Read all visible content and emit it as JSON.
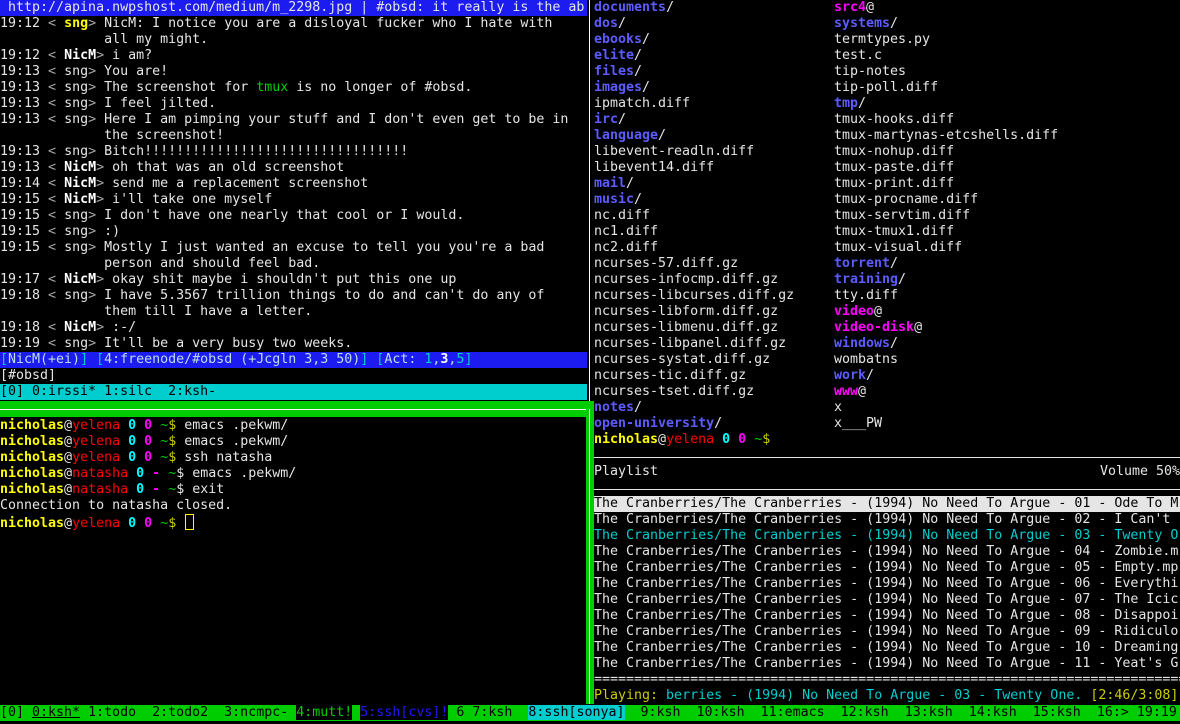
{
  "colors": {
    "tmux_green": "#00cd00",
    "tmux_cyan": "#00cdcd",
    "irssi_blue": "#1c1cf0",
    "dir_blue": "#5c5cff",
    "link_magenta": "#ff00ff"
  },
  "irc": {
    "topic": " http://apina.nwpshost.com/medium/m_2298.jpg | #obsd: it really is the ab",
    "lines": [
      [
        [
          "19:12 ",
          "t"
        ],
        [
          "< ",
          "dim"
        ],
        [
          "sng",
          "hl"
        ],
        [
          "> ",
          "dim"
        ],
        [
          "NicM: I notice you are a disloyal fucker who I hate with",
          "t"
        ]
      ],
      [
        [
          "             all my might.",
          "t"
        ]
      ],
      [
        [
          "19:12 ",
          "t"
        ],
        [
          "< ",
          "dim"
        ],
        [
          "NicM",
          "bold"
        ],
        [
          "> ",
          "dim"
        ],
        [
          "i am?",
          "t"
        ]
      ],
      [
        [
          "19:13 ",
          "t"
        ],
        [
          "< ",
          "dim"
        ],
        [
          "sng",
          "t"
        ],
        [
          "> ",
          "dim"
        ],
        [
          "You are!",
          "t"
        ]
      ],
      [
        [
          "19:13 ",
          "t"
        ],
        [
          "< ",
          "dim"
        ],
        [
          "sng",
          "t"
        ],
        [
          "> ",
          "dim"
        ],
        [
          "The screenshot for ",
          "t"
        ],
        [
          "tmux",
          "grn"
        ],
        [
          " is no longer of #obsd.",
          "t"
        ]
      ],
      [
        [
          "19:13 ",
          "t"
        ],
        [
          "< ",
          "dim"
        ],
        [
          "sng",
          "t"
        ],
        [
          "> ",
          "dim"
        ],
        [
          "I feel jilted.",
          "t"
        ]
      ],
      [
        [
          "19:13 ",
          "t"
        ],
        [
          "< ",
          "dim"
        ],
        [
          "sng",
          "t"
        ],
        [
          "> ",
          "dim"
        ],
        [
          "Here I am pimping your stuff and I don't even get to be in",
          "t"
        ]
      ],
      [
        [
          "             the screenshot!",
          "t"
        ]
      ],
      [
        [
          "19:13 ",
          "t"
        ],
        [
          "< ",
          "dim"
        ],
        [
          "sng",
          "t"
        ],
        [
          "> ",
          "dim"
        ],
        [
          "Bitch!!!!!!!!!!!!!!!!!!!!!!!!!!!!!!!!!",
          "t"
        ]
      ],
      [
        [
          "19:13 ",
          "t"
        ],
        [
          "< ",
          "dim"
        ],
        [
          "NicM",
          "bold"
        ],
        [
          "> ",
          "dim"
        ],
        [
          "oh that was an old screenshot",
          "t"
        ]
      ],
      [
        [
          "19:14 ",
          "t"
        ],
        [
          "< ",
          "dim"
        ],
        [
          "NicM",
          "bold"
        ],
        [
          "> ",
          "dim"
        ],
        [
          "send me a replacement screenshot",
          "t"
        ]
      ],
      [
        [
          "19:15 ",
          "t"
        ],
        [
          "< ",
          "dim"
        ],
        [
          "NicM",
          "bold"
        ],
        [
          "> ",
          "dim"
        ],
        [
          "i'll take one myself",
          "t"
        ]
      ],
      [
        [
          "19:15 ",
          "t"
        ],
        [
          "< ",
          "dim"
        ],
        [
          "sng",
          "t"
        ],
        [
          "> ",
          "dim"
        ],
        [
          "I don't have one nearly that cool or I would.",
          "t"
        ]
      ],
      [
        [
          "19:15 ",
          "t"
        ],
        [
          "< ",
          "dim"
        ],
        [
          "sng",
          "t"
        ],
        [
          "> ",
          "dim"
        ],
        [
          ":)",
          "t"
        ]
      ],
      [
        [
          "19:15 ",
          "t"
        ],
        [
          "< ",
          "dim"
        ],
        [
          "sng",
          "t"
        ],
        [
          "> ",
          "dim"
        ],
        [
          "Mostly I just wanted an excuse to tell you you're a bad",
          "t"
        ]
      ],
      [
        [
          "             person and should feel bad.",
          "t"
        ]
      ],
      [
        [
          "19:17 ",
          "t"
        ],
        [
          "< ",
          "dim"
        ],
        [
          "NicM",
          "bold"
        ],
        [
          "> ",
          "dim"
        ],
        [
          "okay shit maybe i shouldn't put this one up",
          "t"
        ]
      ],
      [
        [
          "19:18 ",
          "t"
        ],
        [
          "< ",
          "dim"
        ],
        [
          "sng",
          "t"
        ],
        [
          "> ",
          "dim"
        ],
        [
          "I have 5.3567 trillion things to do and can't do any of",
          "t"
        ]
      ],
      [
        [
          "             them till I have a letter.",
          "t"
        ]
      ],
      [
        [
          "19:18 ",
          "t"
        ],
        [
          "< ",
          "dim"
        ],
        [
          "NicM",
          "bold"
        ],
        [
          "> ",
          "dim"
        ],
        [
          ":-/",
          "t"
        ]
      ],
      [
        [
          "19:19 ",
          "t"
        ],
        [
          "< ",
          "dim"
        ],
        [
          "sng",
          "t"
        ],
        [
          "> ",
          "dim"
        ],
        [
          "It'll be a very busy two weeks.",
          "t"
        ]
      ]
    ],
    "status": [
      [
        "[",
        "sbr"
      ],
      [
        "NicM(+ei)",
        "stx"
      ],
      [
        "] [",
        "sbr"
      ],
      [
        "4:freenode/#obsd (+Jcgln 3,3 50)",
        "stx"
      ],
      [
        "] [",
        "sbr"
      ],
      [
        "Act: ",
        "stx"
      ],
      [
        "1",
        "sbr"
      ],
      [
        ",",
        "stx"
      ],
      [
        "3",
        "swh"
      ],
      [
        ",",
        "stx"
      ],
      [
        "5",
        "sbr"
      ],
      [
        "]",
        "sbr"
      ]
    ],
    "input": "[#obsd]"
  },
  "irssi_tmux_bar": "[0] 0:irssi* 1:silc  2:ksh-",
  "shell": {
    "lines": [
      [
        [
          "nicholas",
          "pu"
        ],
        [
          "@",
          "at"
        ],
        [
          "yelena",
          "ph"
        ],
        [
          " ",
          "t"
        ],
        [
          "0",
          "c0"
        ],
        [
          " ",
          "t"
        ],
        [
          "0",
          "m0"
        ],
        [
          " ",
          "t"
        ],
        [
          "~",
          "tilde"
        ],
        [
          "$",
          "ydollar"
        ],
        [
          " emacs .pekwm/",
          "t"
        ]
      ],
      [
        [
          "nicholas",
          "pu"
        ],
        [
          "@",
          "at"
        ],
        [
          "yelena",
          "ph"
        ],
        [
          " ",
          "t"
        ],
        [
          "0",
          "c0"
        ],
        [
          " ",
          "t"
        ],
        [
          "0",
          "m0"
        ],
        [
          " ",
          "t"
        ],
        [
          "~",
          "tilde"
        ],
        [
          "$",
          "ydollar"
        ],
        [
          " emacs .pekwm/",
          "t"
        ]
      ],
      [
        [
          "nicholas",
          "pu"
        ],
        [
          "@",
          "at"
        ],
        [
          "yelena",
          "ph"
        ],
        [
          " ",
          "t"
        ],
        [
          "0",
          "c0"
        ],
        [
          " ",
          "t"
        ],
        [
          "0",
          "m0"
        ],
        [
          " ",
          "t"
        ],
        [
          "~",
          "tilde"
        ],
        [
          "$",
          "ydollar"
        ],
        [
          " ssh natasha",
          "t"
        ]
      ],
      [
        [
          "nicholas",
          "pu"
        ],
        [
          "@",
          "at"
        ],
        [
          "natasha",
          "ph"
        ],
        [
          " ",
          "t"
        ],
        [
          "0",
          "c0"
        ],
        [
          " ",
          "t"
        ],
        [
          "-",
          "m0"
        ],
        [
          " ",
          "t"
        ],
        [
          "~",
          "tilde"
        ],
        [
          "$",
          "dollar"
        ],
        [
          " emacs .pekwm/",
          "t"
        ]
      ],
      [
        [
          "nicholas",
          "pu"
        ],
        [
          "@",
          "at"
        ],
        [
          "natasha",
          "ph"
        ],
        [
          " ",
          "t"
        ],
        [
          "0",
          "c0"
        ],
        [
          " ",
          "t"
        ],
        [
          "-",
          "m0"
        ],
        [
          " ",
          "t"
        ],
        [
          "~",
          "tilde"
        ],
        [
          "$",
          "dollar"
        ],
        [
          " exit",
          "t"
        ]
      ],
      [
        [
          "Connection to natasha closed.",
          "t"
        ]
      ],
      [
        [
          "nicholas",
          "pu"
        ],
        [
          "@",
          "at"
        ],
        [
          "yelena",
          "ph"
        ],
        [
          " ",
          "t"
        ],
        [
          "0",
          "c0"
        ],
        [
          " ",
          "t"
        ],
        [
          "0",
          "m0"
        ],
        [
          " ",
          "t"
        ],
        [
          "~",
          "tilde"
        ],
        [
          "$",
          "ydollar"
        ],
        [
          " ",
          "t"
        ]
      ]
    ]
  },
  "files": {
    "left": [
      [
        "documents",
        "dir",
        "/"
      ],
      [
        "dos",
        "dir",
        "/"
      ],
      [
        "ebooks",
        "dir",
        "/"
      ],
      [
        "elite",
        "dir",
        "/"
      ],
      [
        "files",
        "dir",
        "/"
      ],
      [
        "images",
        "dir",
        "/"
      ],
      [
        "ipmatch.diff",
        "file",
        ""
      ],
      [
        "irc",
        "dir",
        "/"
      ],
      [
        "language",
        "dir",
        "/"
      ],
      [
        "libevent-readln.diff",
        "file",
        ""
      ],
      [
        "libevent14.diff",
        "file",
        ""
      ],
      [
        "mail",
        "dir",
        "/"
      ],
      [
        "music",
        "dir",
        "/"
      ],
      [
        "nc.diff",
        "file",
        ""
      ],
      [
        "nc1.diff",
        "file",
        ""
      ],
      [
        "nc2.diff",
        "file",
        ""
      ],
      [
        "ncurses-57.diff.gz",
        "file",
        ""
      ],
      [
        "ncurses-infocmp.diff.gz",
        "file",
        ""
      ],
      [
        "ncurses-libcurses.diff.gz",
        "file",
        ""
      ],
      [
        "ncurses-libform.diff.gz",
        "file",
        ""
      ],
      [
        "ncurses-libmenu.diff.gz",
        "file",
        ""
      ],
      [
        "ncurses-libpanel.diff.gz",
        "file",
        ""
      ],
      [
        "ncurses-systat.diff.gz",
        "file",
        ""
      ],
      [
        "ncurses-tic.diff.gz",
        "file",
        ""
      ],
      [
        "ncurses-tset.diff.gz",
        "file",
        ""
      ],
      [
        "notes",
        "dir",
        "/"
      ],
      [
        "open-university",
        "dir",
        "/"
      ]
    ],
    "right": [
      [
        "src4",
        "lnk",
        "@"
      ],
      [
        "systems",
        "dir",
        "/"
      ],
      [
        "termtypes.py",
        "file",
        ""
      ],
      [
        "test.c",
        "file",
        ""
      ],
      [
        "tip-notes",
        "file",
        ""
      ],
      [
        "tip-poll.diff",
        "file",
        ""
      ],
      [
        "tmp",
        "dir",
        "/"
      ],
      [
        "tmux-hooks.diff",
        "file",
        ""
      ],
      [
        "tmux-martynas-etcshells.diff",
        "file",
        ""
      ],
      [
        "tmux-nohup.diff",
        "file",
        ""
      ],
      [
        "tmux-paste.diff",
        "file",
        ""
      ],
      [
        "tmux-print.diff",
        "file",
        ""
      ],
      [
        "tmux-procname.diff",
        "file",
        ""
      ],
      [
        "tmux-servtim.diff",
        "file",
        ""
      ],
      [
        "tmux-tmux1.diff",
        "file",
        ""
      ],
      [
        "tmux-visual.diff",
        "file",
        ""
      ],
      [
        "torrent",
        "dir",
        "/"
      ],
      [
        "training",
        "dir",
        "/"
      ],
      [
        "tty.diff",
        "file",
        ""
      ],
      [
        "video",
        "lnk",
        "@"
      ],
      [
        "video-disk",
        "lnk",
        "@"
      ],
      [
        "windows",
        "dir",
        "/"
      ],
      [
        "wombatns",
        "file",
        ""
      ],
      [
        "work",
        "dir",
        "/"
      ],
      [
        "www",
        "lnk",
        "@"
      ],
      [
        "x",
        "file",
        ""
      ],
      [
        "x___PW",
        "file",
        ""
      ]
    ],
    "prompt": [
      [
        "nicholas",
        "pu"
      ],
      [
        "@",
        "at"
      ],
      [
        "yelena",
        "ph"
      ],
      [
        " ",
        "t"
      ],
      [
        "0",
        "c0"
      ],
      [
        " ",
        "t"
      ],
      [
        "0",
        "m0"
      ],
      [
        " ",
        "t"
      ],
      [
        "~",
        "tilde"
      ],
      [
        "$",
        "ydollar"
      ]
    ]
  },
  "ncmpc": {
    "title": "Playlist",
    "volume": "Volume 50%",
    "selected_index": 0,
    "playing_index": 2,
    "tracks": [
      "The Cranberries/The Cranberries - (1994) No Need To Argue - 01 - Ode To M",
      "The Cranberries/The Cranberries - (1994) No Need To Argue - 02 - I Can't",
      "The Cranberries/The Cranberries - (1994) No Need To Argue - 03 - Twenty O",
      "The Cranberries/The Cranberries - (1994) No Need To Argue - 04 - Zombie.m",
      "The Cranberries/The Cranberries - (1994) No Need To Argue - 05 - Empty.mp",
      "The Cranberries/The Cranberries - (1994) No Need To Argue - 06 - Everythi",
      "The Cranberries/The Cranberries - (1994) No Need To Argue - 07 - The Icic",
      "The Cranberries/The Cranberries - (1994) No Need To Argue - 08 - Disappoi",
      "The Cranberries/The Cranberries - (1994) No Need To Argue - 09 - Ridiculo",
      "The Cranberries/The Cranberries - (1994) No Need To Argue - 10 - Dreaming",
      "The Cranberries/The Cranberries - (1994) No Need To Argue - 11 - Yeat's G"
    ],
    "divider": "==========================================================================",
    "playing_label": "Playing:",
    "now_playing": " berries - (1994) No Need To Argue - 03 - Twenty One.",
    "time": " [2:46/3:08]"
  },
  "status_bar": [
    [
      "[0] ",
      "sb-bar"
    ],
    [
      "0:ksh*",
      "sb-cur"
    ],
    [
      " 1:todo  2:todo2  3:ncmpc- ",
      "sb-bar"
    ],
    [
      "4:mutt!",
      "sb-alert-green"
    ],
    [
      " ",
      "sb-bar"
    ],
    [
      "5:ssh[cvs]!",
      "sb-alert-blue"
    ],
    [
      " 6 7:ksh  ",
      "sb-bar"
    ],
    [
      "8:ssh[sonya]",
      "sb-sonya"
    ],
    [
      "  9:ksh  10:ksh  11:emacs  12:ksh  13:ksh  14:ksh  15:ksh  16:> 19:19",
      "sb-bar"
    ]
  ]
}
